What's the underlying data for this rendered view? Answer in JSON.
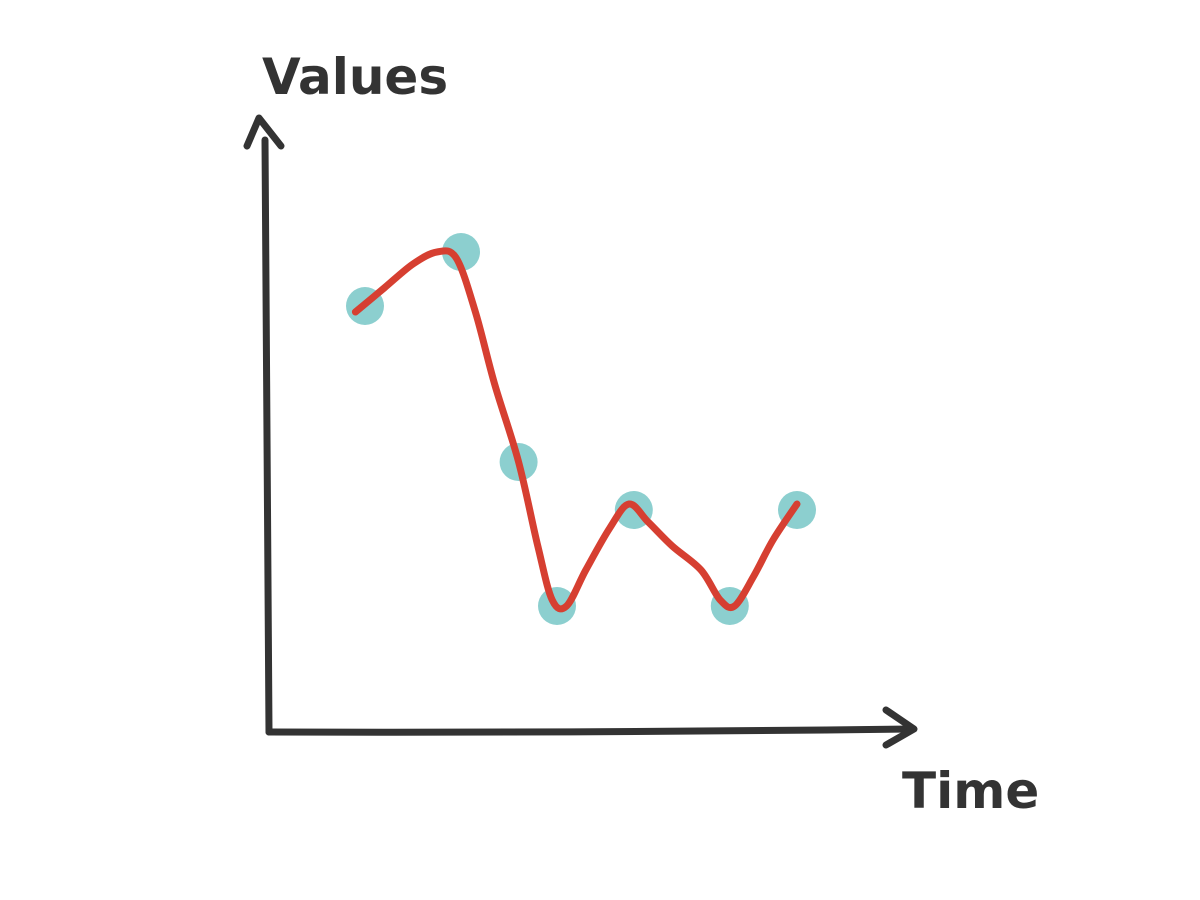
{
  "chart_data": {
    "type": "scatter",
    "title": "",
    "xlabel": "Time",
    "ylabel": "Values",
    "grid": false,
    "legend": "none",
    "colors": {
      "points": "#8ccfcf",
      "curve": "#d63f31",
      "axes": "#333333"
    },
    "points": [
      {
        "x": 1.0,
        "y": 7.1
      },
      {
        "x": 2.0,
        "y": 8.0
      },
      {
        "x": 2.6,
        "y": 4.5
      },
      {
        "x": 3.0,
        "y": 2.1
      },
      {
        "x": 3.8,
        "y": 3.7
      },
      {
        "x": 4.8,
        "y": 2.1
      },
      {
        "x": 5.5,
        "y": 3.7
      }
    ],
    "fit_curve": [
      {
        "x": 0.9,
        "y": 7.0
      },
      {
        "x": 1.2,
        "y": 7.4
      },
      {
        "x": 1.5,
        "y": 7.8
      },
      {
        "x": 1.75,
        "y": 8.0
      },
      {
        "x": 1.95,
        "y": 7.9
      },
      {
        "x": 2.15,
        "y": 7.0
      },
      {
        "x": 2.35,
        "y": 5.8
      },
      {
        "x": 2.6,
        "y": 4.5
      },
      {
        "x": 2.8,
        "y": 3.1
      },
      {
        "x": 2.95,
        "y": 2.2
      },
      {
        "x": 3.1,
        "y": 2.1
      },
      {
        "x": 3.3,
        "y": 2.7
      },
      {
        "x": 3.55,
        "y": 3.4
      },
      {
        "x": 3.75,
        "y": 3.8
      },
      {
        "x": 3.95,
        "y": 3.5
      },
      {
        "x": 4.2,
        "y": 3.1
      },
      {
        "x": 4.5,
        "y": 2.7
      },
      {
        "x": 4.7,
        "y": 2.2
      },
      {
        "x": 4.85,
        "y": 2.1
      },
      {
        "x": 5.05,
        "y": 2.6
      },
      {
        "x": 5.25,
        "y": 3.2
      },
      {
        "x": 5.5,
        "y": 3.8
      }
    ]
  }
}
